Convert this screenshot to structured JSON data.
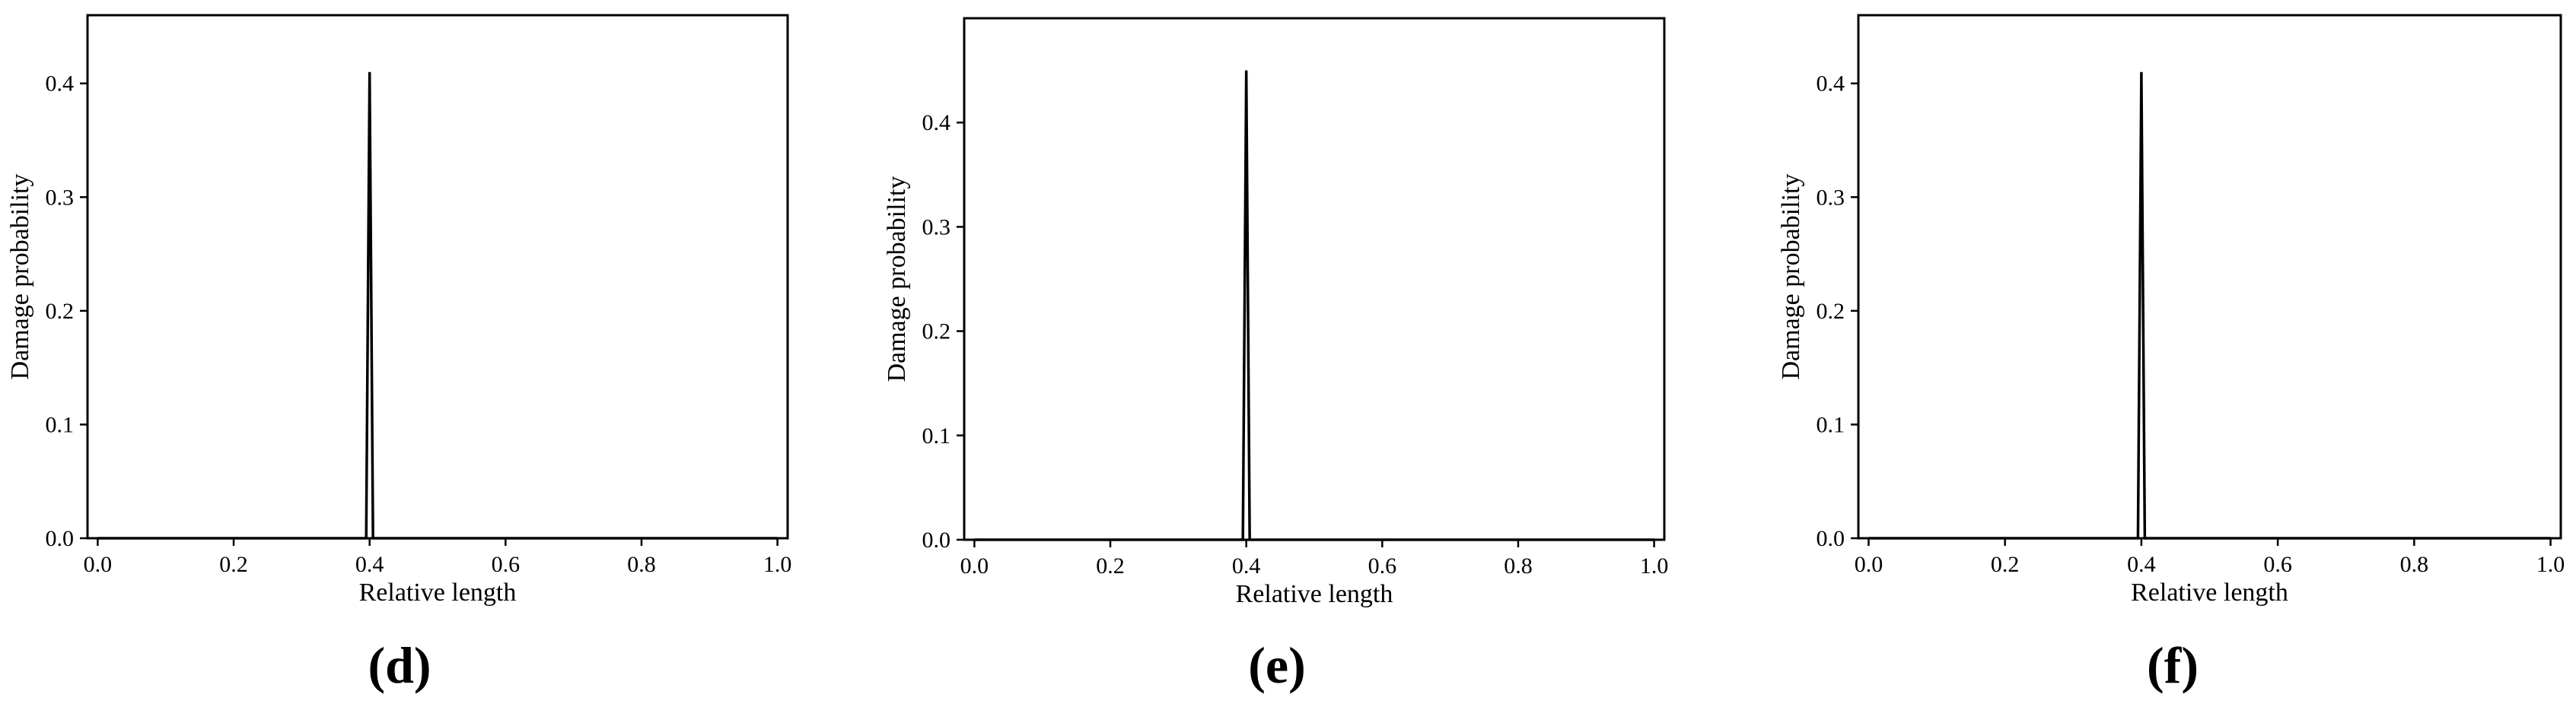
{
  "chart_data": [
    {
      "type": "line",
      "panel_label": "(d)",
      "xlabel": "Relative length",
      "ylabel": "Damage probability",
      "xlim": [
        -0.015,
        1.015
      ],
      "ylim": [
        0,
        0.46
      ],
      "xticks": [
        0.0,
        0.2,
        0.4,
        0.6,
        0.8,
        1.0
      ],
      "xtick_labels": [
        "0.0",
        "0.2",
        "0.4",
        "0.6",
        "0.8",
        "1.0"
      ],
      "yticks": [
        0.0,
        0.1,
        0.2,
        0.3,
        0.4
      ],
      "ytick_labels": [
        "0.0",
        "0.1",
        "0.2",
        "0.3",
        "0.4"
      ],
      "grid": false,
      "series": [
        {
          "x": [
            0.0,
            0.395,
            0.4,
            0.405,
            1.0
          ],
          "y": [
            0,
            0,
            0.41,
            0,
            0
          ],
          "color": "#000000"
        }
      ]
    },
    {
      "type": "line",
      "panel_label": "(e)",
      "xlabel": "Relative length",
      "ylabel": "Damage probability",
      "xlim": [
        -0.015,
        1.015
      ],
      "ylim": [
        0,
        0.5
      ],
      "xticks": [
        0.0,
        0.2,
        0.4,
        0.6,
        0.8,
        1.0
      ],
      "xtick_labels": [
        "0.0",
        "0.2",
        "0.4",
        "0.6",
        "0.8",
        "1.0"
      ],
      "yticks": [
        0.0,
        0.1,
        0.2,
        0.3,
        0.4
      ],
      "ytick_labels": [
        "0.0",
        "0.1",
        "0.2",
        "0.3",
        "0.4"
      ],
      "grid": false,
      "series": [
        {
          "x": [
            0.0,
            0.395,
            0.4,
            0.405,
            1.0
          ],
          "y": [
            0,
            0,
            0.45,
            0,
            0
          ],
          "color": "#000000"
        }
      ]
    },
    {
      "type": "line",
      "panel_label": "(f)",
      "xlabel": "Relative length",
      "ylabel": "Damage probability",
      "xlim": [
        -0.015,
        1.015
      ],
      "ylim": [
        0,
        0.46
      ],
      "xticks": [
        0.0,
        0.2,
        0.4,
        0.6,
        0.8,
        1.0
      ],
      "xtick_labels": [
        "0.0",
        "0.2",
        "0.4",
        "0.6",
        "0.8",
        "1.0"
      ],
      "yticks": [
        0.0,
        0.1,
        0.2,
        0.3,
        0.4
      ],
      "ytick_labels": [
        "0.0",
        "0.1",
        "0.2",
        "0.3",
        "0.4"
      ],
      "grid": false,
      "series": [
        {
          "x": [
            0.0,
            0.395,
            0.4,
            0.405,
            1.0
          ],
          "y": [
            0,
            0,
            0.41,
            0,
            0
          ],
          "color": "#000000"
        }
      ]
    }
  ]
}
